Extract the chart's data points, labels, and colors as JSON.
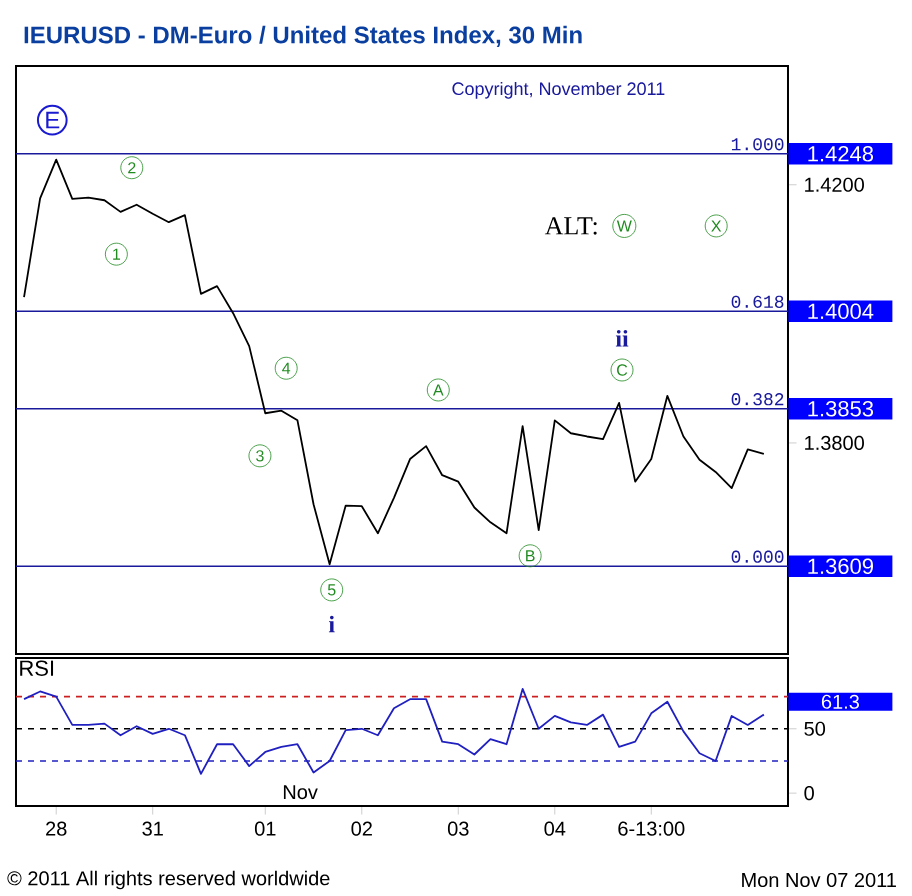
{
  "chart_data": [
    {
      "type": "line",
      "title": "IEURUSD - DM-Euro / United States Index, 30 Min",
      "color": "#000000",
      "categories": [
        null,
        null,
        null,
        null,
        null,
        null,
        null,
        null,
        null,
        null,
        null,
        null,
        null,
        null,
        null,
        null,
        null,
        null,
        null,
        null,
        null,
        null,
        null,
        null,
        null,
        null,
        null,
        null,
        null,
        null,
        null,
        null,
        null,
        null,
        null,
        null,
        null,
        null,
        null,
        null,
        null,
        null,
        null,
        null,
        null,
        null,
        null,
        null
      ],
      "values": [
        1.4026,
        1.4179,
        1.4239,
        1.4178,
        1.418,
        1.4176,
        1.4158,
        1.4169,
        1.4155,
        1.4142,
        1.4153,
        1.4031,
        1.4043,
        1.4001,
        1.395,
        1.3846,
        1.385,
        1.3835,
        1.3705,
        1.3612,
        1.3703,
        1.3702,
        1.366,
        1.3715,
        1.3775,
        1.3795,
        1.375,
        1.374,
        1.37,
        1.3677,
        1.366,
        1.3826,
        1.3665,
        1.3835,
        1.3815,
        1.381,
        1.3806,
        1.3862,
        1.374,
        1.3775,
        1.3873,
        1.381,
        1.3774,
        1.3755,
        1.373,
        1.379,
        1.3783,
        null
      ],
      "ylim": [
        1.3473,
        1.4384
      ],
      "yticks": [
        {
          "value": 1.38,
          "label": "1.3800"
        },
        {
          "value": 1.42,
          "label": "1.4200"
        }
      ],
      "tick_labels": "y",
      "ref_lines": [
        {
          "axis": "y",
          "value": 1.4248,
          "label": "1.4248",
          "color": "#1a1a9c"
        },
        {
          "axis": "y",
          "value": 1.4004,
          "label": "1.4004",
          "color": "#1a1a9c"
        },
        {
          "axis": "y",
          "value": 1.3853,
          "label": "1.3853",
          "color": "#1a1a9c"
        },
        {
          "axis": "y",
          "value": 1.3609,
          "label": "1.3609",
          "color": "#1a1a9c"
        }
      ],
      "annotations": [
        "Copyright, November 2011",
        "E",
        "2",
        "1",
        "4",
        "3",
        "5",
        "i",
        "A",
        "B",
        "C",
        "ii",
        "ALT:",
        "W",
        "X",
        {
          "text": "1.000",
          "y": 1.4248
        },
        {
          "text": "0.618",
          "y": 1.4004
        },
        {
          "text": "0.382",
          "y": 1.3853
        },
        {
          "text": "0.000",
          "y": 1.3609
        }
      ]
    },
    {
      "type": "line",
      "title": "RSI",
      "color": "#2020c0",
      "categories": [
        null,
        null,
        "28",
        null,
        null,
        null,
        null,
        null,
        "31",
        null,
        null,
        null,
        null,
        null,
        null,
        "01",
        null,
        null,
        null,
        null,
        null,
        "02",
        null,
        null,
        null,
        null,
        null,
        "03",
        null,
        null,
        null,
        null,
        null,
        "04",
        null,
        null,
        null,
        null,
        null,
        "6-13:00",
        null,
        null,
        null,
        null,
        null,
        null,
        null,
        null
      ],
      "values": [
        73,
        79,
        75,
        53,
        53,
        54,
        45,
        52,
        46,
        50,
        45,
        15,
        38,
        38,
        21,
        32,
        36,
        38,
        16,
        25,
        49,
        50,
        45,
        66,
        73,
        73,
        40,
        38,
        30,
        42,
        38,
        81,
        50,
        60,
        55,
        53,
        61,
        36,
        40,
        62,
        71,
        48,
        31,
        25,
        60,
        53,
        61,
        null
      ],
      "ylim": [
        -10,
        105
      ],
      "yticks": [
        0,
        50
      ],
      "ref_lines": [
        {
          "axis": "y",
          "value": 75,
          "color": "#cc2020",
          "line_style": "dashed"
        },
        {
          "axis": "y",
          "value": 50,
          "color": "#000000",
          "line_style": "dashed"
        },
        {
          "axis": "y",
          "value": 25,
          "color": "#2020c0",
          "line_style": "dashed"
        }
      ],
      "annotations": [
        "61.3",
        "Nov",
        "© 2011 All rights reserved worldwide",
        "Mon Nov 07 2011"
      ]
    }
  ]
}
